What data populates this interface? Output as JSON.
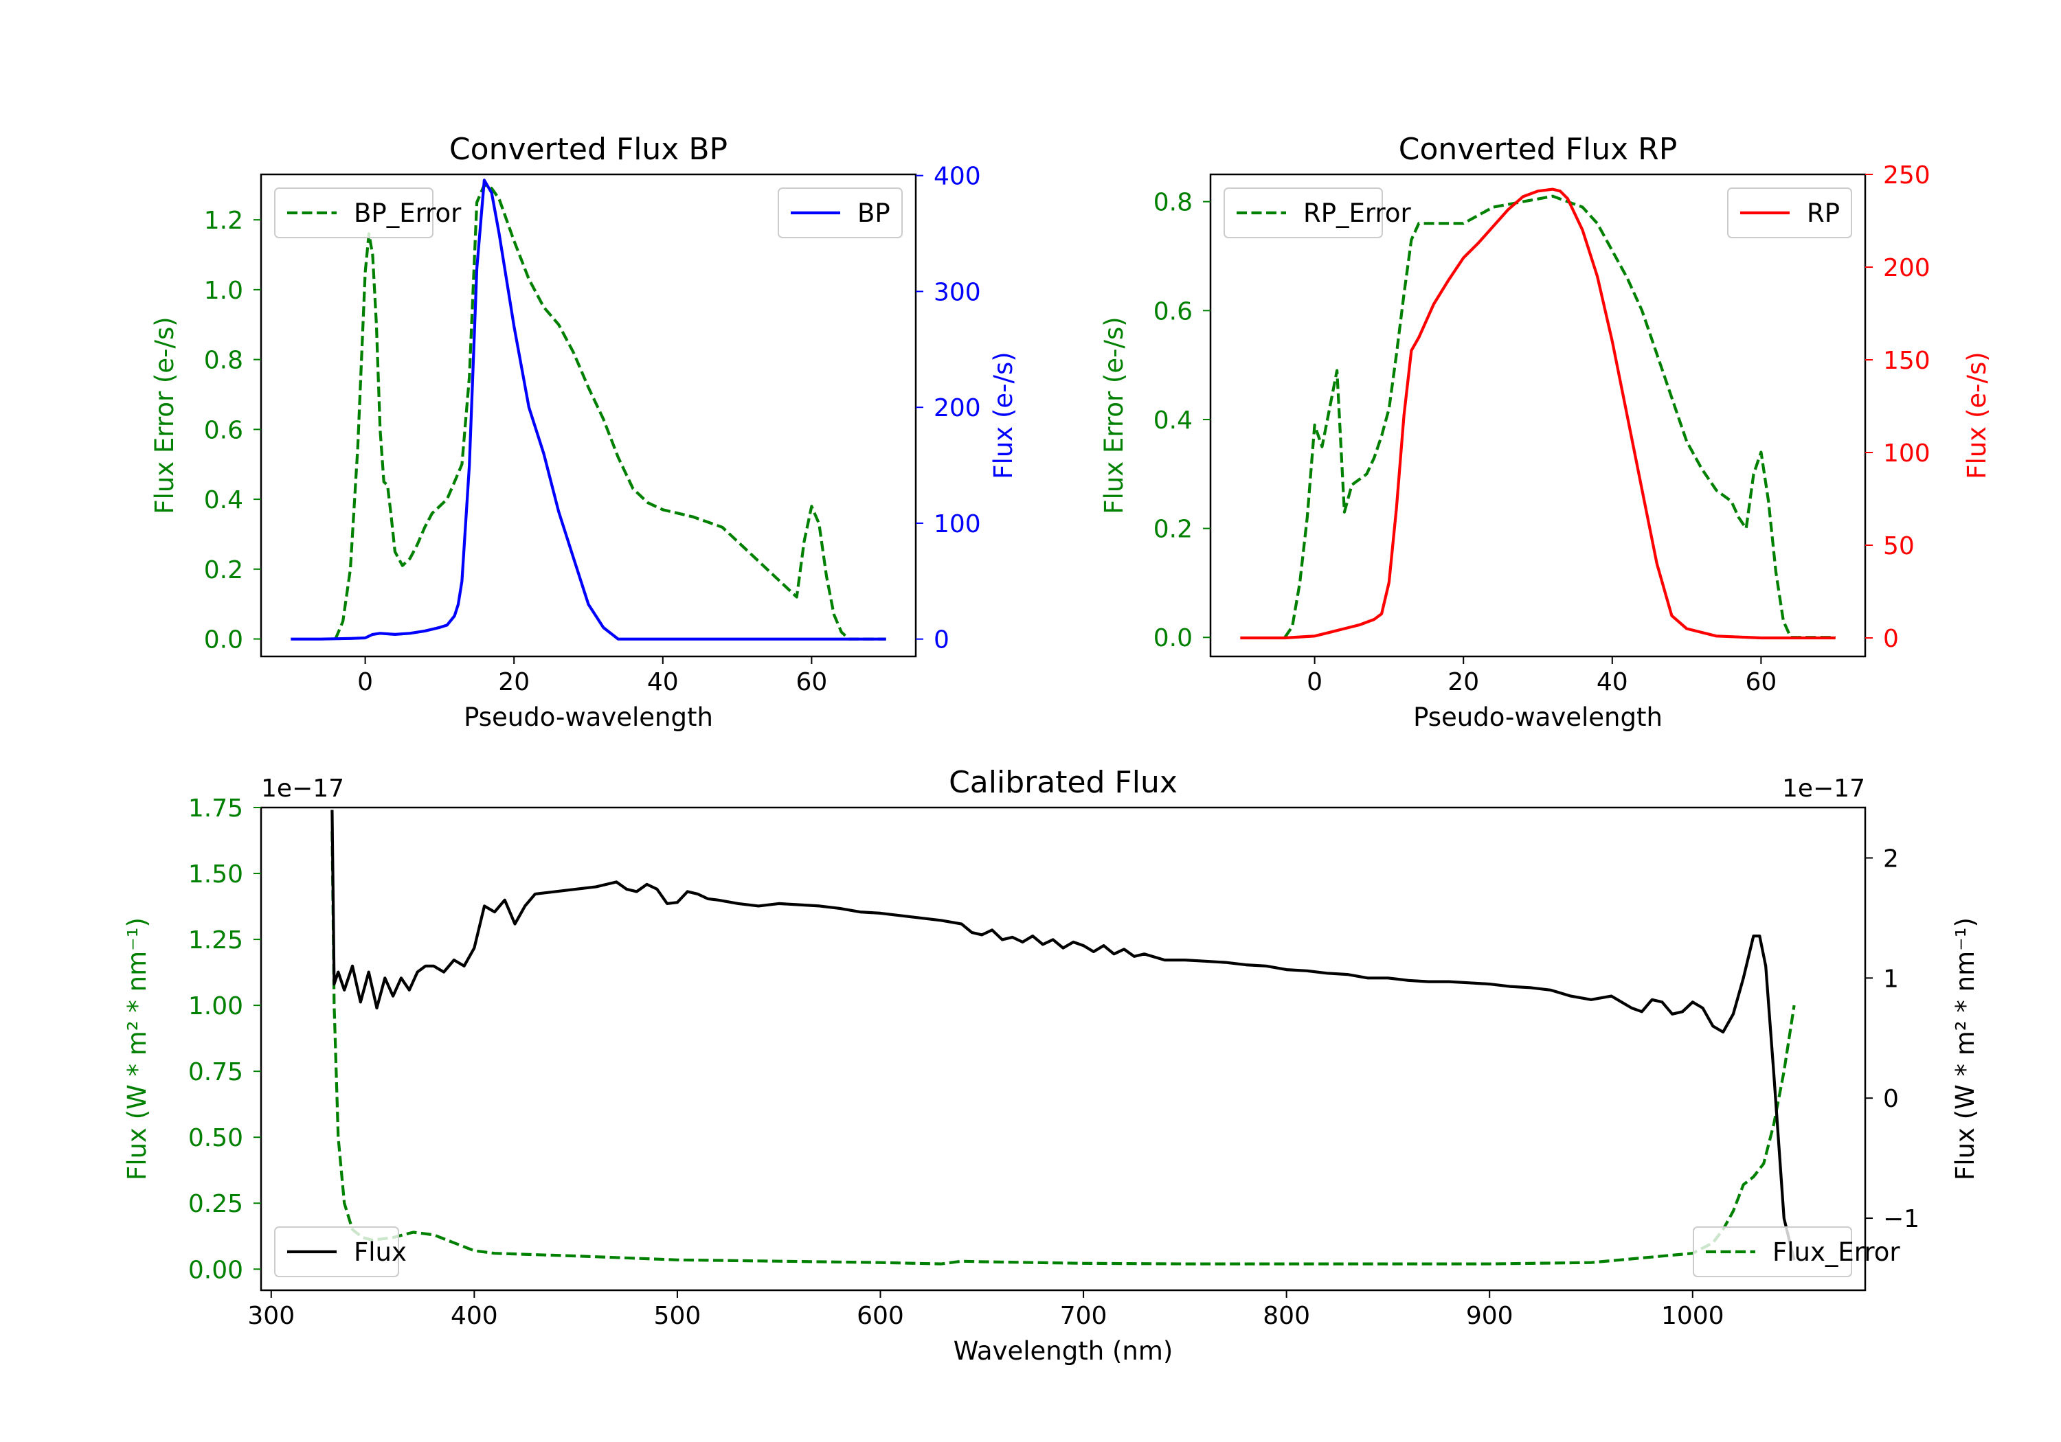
{
  "chart_data": [
    {
      "id": "bp",
      "type": "line",
      "title": "Converted Flux BP",
      "xlabel": "Pseudo-wavelength",
      "ylabel_left": "Flux Error (e-/s)",
      "ylabel_right": "Flux (e-/s)",
      "color_left": "#008000",
      "color_right": "#0000ff",
      "xlim": [
        -14,
        74
      ],
      "ylim_left": [
        -0.05,
        1.33
      ],
      "ylim_right": [
        -15.0,
        401.0
      ],
      "xticks": [
        0,
        20,
        40,
        60
      ],
      "yticks_left": [
        0.0,
        0.2,
        0.4,
        0.6,
        0.8,
        1.0,
        1.2
      ],
      "yticks_right": [
        0,
        100,
        200,
        300,
        400
      ],
      "legend_left": {
        "label": "BP_Error",
        "position": "upper left"
      },
      "legend_right": {
        "label": "BP",
        "position": "upper right"
      },
      "series": [
        {
          "name": "BP_Error",
          "axis": "left",
          "style": "dashed",
          "color": "#008000",
          "x": [
            -4,
            -3,
            -2,
            -1,
            0,
            0.5,
            1,
            1.5,
            2,
            2.5,
            3,
            3.5,
            4,
            5,
            6,
            7,
            8,
            9,
            10,
            11,
            12,
            13,
            14,
            15,
            16,
            17,
            18,
            20,
            22,
            24,
            26,
            28,
            30,
            32,
            34,
            36,
            38,
            40,
            44,
            48,
            50,
            54,
            57,
            58,
            59,
            60,
            61,
            62,
            63,
            64,
            65,
            66,
            70
          ],
          "values": [
            0,
            0.05,
            0.2,
            0.55,
            1.05,
            1.16,
            1.1,
            0.9,
            0.6,
            0.45,
            0.44,
            0.35,
            0.25,
            0.21,
            0.23,
            0.27,
            0.32,
            0.36,
            0.38,
            0.4,
            0.45,
            0.5,
            0.75,
            1.25,
            1.3,
            1.29,
            1.26,
            1.14,
            1.03,
            0.95,
            0.9,
            0.82,
            0.72,
            0.63,
            0.52,
            0.43,
            0.39,
            0.37,
            0.35,
            0.32,
            0.28,
            0.2,
            0.14,
            0.12,
            0.28,
            0.38,
            0.33,
            0.18,
            0.07,
            0.02,
            0.0,
            0.0,
            0.0
          ]
        },
        {
          "name": "BP",
          "axis": "right",
          "style": "solid",
          "color": "#0000ff",
          "x": [
            -10,
            -6,
            -2,
            0,
            1,
            2,
            4,
            6,
            8,
            10,
            11,
            12,
            12.5,
            13,
            14,
            15,
            16,
            17,
            18,
            20,
            22,
            24,
            26,
            28,
            30,
            32,
            34,
            36,
            37,
            38,
            40,
            44,
            48,
            52,
            56,
            60,
            64,
            70
          ],
          "values": [
            0,
            0,
            0.5,
            1,
            4,
            5,
            4,
            5,
            7,
            10,
            12,
            20,
            30,
            50,
            150,
            320,
            396,
            385,
            350,
            270,
            200,
            160,
            110,
            70,
            30,
            10,
            0,
            0,
            0,
            0,
            0,
            0,
            0,
            0,
            0,
            0,
            0,
            0
          ]
        }
      ]
    },
    {
      "id": "rp",
      "type": "line",
      "title": "Converted Flux RP",
      "xlabel": "Pseudo-wavelength",
      "ylabel_left": "Flux Error (e-/s)",
      "ylabel_right": "Flux (e-/s)",
      "color_left": "#008000",
      "color_right": "#ff0000",
      "xlim": [
        -14,
        74
      ],
      "ylim_left": [
        -0.035,
        0.85
      ],
      "ylim_right": [
        -10,
        250
      ],
      "xticks": [
        0,
        20,
        40,
        60
      ],
      "yticks_left": [
        0.0,
        0.2,
        0.4,
        0.6,
        0.8
      ],
      "yticks_right": [
        0,
        50,
        100,
        150,
        200,
        250
      ],
      "legend_left": {
        "label": "RP_Error",
        "position": "upper left"
      },
      "legend_right": {
        "label": "RP",
        "position": "upper right"
      },
      "series": [
        {
          "name": "RP_Error",
          "axis": "left",
          "style": "dashed",
          "color": "#008000",
          "x": [
            -4,
            -3,
            -2,
            -1,
            0,
            1,
            2,
            3,
            4,
            5,
            6,
            7,
            8,
            9,
            10,
            11,
            12,
            13,
            14,
            16,
            18,
            20,
            24,
            28,
            32,
            34,
            36,
            38,
            40,
            42,
            44,
            46,
            48,
            50,
            52,
            54,
            56,
            57,
            58,
            59,
            60,
            61,
            62,
            63,
            64,
            66,
            70
          ],
          "values": [
            0,
            0.02,
            0.1,
            0.22,
            0.39,
            0.35,
            0.42,
            0.49,
            0.23,
            0.28,
            0.29,
            0.3,
            0.33,
            0.37,
            0.42,
            0.52,
            0.63,
            0.73,
            0.76,
            0.76,
            0.76,
            0.76,
            0.79,
            0.8,
            0.81,
            0.8,
            0.79,
            0.76,
            0.71,
            0.66,
            0.6,
            0.52,
            0.44,
            0.36,
            0.31,
            0.27,
            0.25,
            0.22,
            0.2,
            0.3,
            0.34,
            0.25,
            0.12,
            0.03,
            0.0,
            0.0,
            0.0
          ]
        },
        {
          "name": "RP",
          "axis": "right",
          "style": "solid",
          "color": "#ff0000",
          "x": [
            -10,
            -4,
            0,
            2,
            4,
            6,
            8,
            9,
            10,
            11,
            12,
            13,
            14,
            16,
            18,
            20,
            22,
            24,
            26,
            28,
            30,
            32,
            33,
            34,
            36,
            38,
            40,
            42,
            44,
            46,
            48,
            50,
            54,
            60,
            70
          ],
          "values": [
            0,
            0,
            1,
            3,
            5,
            7,
            10,
            13,
            30,
            70,
            120,
            155,
            162,
            180,
            193,
            205,
            213,
            222,
            231,
            238,
            241,
            242,
            241,
            237,
            220,
            195,
            160,
            120,
            80,
            40,
            12,
            5,
            1,
            0,
            0
          ]
        }
      ]
    },
    {
      "id": "calibrated",
      "type": "line",
      "title": "Calibrated Flux",
      "xlabel": "Wavelength (nm)",
      "ylabel_left": "Flux (W * m² * nm⁻¹)",
      "ylabel_right": "Flux (W * m² * nm⁻¹)",
      "offset_left": "1e−17",
      "offset_right": "1e−17",
      "color_left": "#008000",
      "color_right": "#000000",
      "xlim": [
        295,
        1085
      ],
      "ylim_left": [
        -0.08,
        1.75
      ],
      "ylim_right": [
        -1.6,
        2.42
      ],
      "xticks": [
        300,
        400,
        500,
        600,
        700,
        800,
        900,
        1000
      ],
      "yticks_left": [
        0.0,
        0.25,
        0.5,
        0.75,
        1.0,
        1.25,
        1.5,
        1.75
      ],
      "yticks_right": [
        -1,
        0,
        1,
        2
      ],
      "legend_left": {
        "label": "Flux",
        "position": "lower left"
      },
      "legend_right": {
        "label": "Flux_Error",
        "position": "lower right"
      },
      "series": [
        {
          "name": "Flux_Error",
          "axis": "left",
          "style": "dashed",
          "color": "#008000",
          "x": [
            330,
            331,
            333,
            336,
            340,
            345,
            350,
            360,
            370,
            380,
            390,
            400,
            410,
            450,
            500,
            550,
            600,
            630,
            640,
            650,
            700,
            750,
            800,
            900,
            950,
            1000,
            1010,
            1015,
            1020,
            1025,
            1030,
            1035,
            1040,
            1045,
            1050
          ],
          "values": [
            1.66,
            1.0,
            0.5,
            0.25,
            0.15,
            0.12,
            0.11,
            0.12,
            0.14,
            0.13,
            0.1,
            0.07,
            0.06,
            0.05,
            0.035,
            0.03,
            0.025,
            0.02,
            0.03,
            0.028,
            0.022,
            0.02,
            0.02,
            0.02,
            0.025,
            0.06,
            0.1,
            0.15,
            0.22,
            0.32,
            0.35,
            0.4,
            0.55,
            0.75,
            1.0
          ]
        },
        {
          "name": "Flux",
          "axis": "right",
          "style": "solid",
          "color": "#000000",
          "x": [
            330,
            331,
            333,
            336,
            340,
            344,
            348,
            352,
            356,
            360,
            364,
            368,
            372,
            376,
            380,
            385,
            390,
            395,
            400,
            405,
            410,
            415,
            420,
            425,
            430,
            440,
            450,
            460,
            470,
            475,
            480,
            485,
            490,
            495,
            500,
            505,
            510,
            515,
            520,
            530,
            540,
            550,
            560,
            570,
            580,
            590,
            600,
            610,
            620,
            630,
            640,
            645,
            650,
            655,
            660,
            665,
            670,
            675,
            680,
            685,
            690,
            695,
            700,
            705,
            710,
            715,
            720,
            725,
            730,
            740,
            750,
            760,
            770,
            780,
            790,
            800,
            810,
            820,
            830,
            840,
            850,
            860,
            870,
            880,
            890,
            900,
            910,
            920,
            930,
            940,
            950,
            960,
            965,
            970,
            975,
            980,
            985,
            990,
            995,
            1000,
            1005,
            1010,
            1015,
            1020,
            1025,
            1030,
            1033,
            1036,
            1040,
            1045,
            1050
          ],
          "values": [
            2.4,
            0.95,
            1.05,
            0.9,
            1.1,
            0.8,
            1.05,
            0.75,
            1.0,
            0.85,
            1.0,
            0.9,
            1.05,
            1.1,
            1.1,
            1.05,
            1.15,
            1.1,
            1.25,
            1.6,
            1.55,
            1.65,
            1.45,
            1.6,
            1.7,
            1.72,
            1.74,
            1.76,
            1.8,
            1.74,
            1.72,
            1.78,
            1.74,
            1.62,
            1.63,
            1.72,
            1.7,
            1.66,
            1.65,
            1.62,
            1.6,
            1.62,
            1.61,
            1.6,
            1.58,
            1.55,
            1.54,
            1.52,
            1.5,
            1.48,
            1.45,
            1.38,
            1.36,
            1.4,
            1.32,
            1.34,
            1.3,
            1.35,
            1.28,
            1.32,
            1.25,
            1.3,
            1.27,
            1.22,
            1.27,
            1.2,
            1.24,
            1.18,
            1.2,
            1.15,
            1.15,
            1.14,
            1.13,
            1.11,
            1.1,
            1.07,
            1.06,
            1.04,
            1.03,
            1.0,
            1.0,
            0.98,
            0.97,
            0.97,
            0.96,
            0.95,
            0.93,
            0.92,
            0.9,
            0.85,
            0.82,
            0.85,
            0.8,
            0.75,
            0.72,
            0.82,
            0.8,
            0.7,
            0.72,
            0.8,
            0.75,
            0.6,
            0.55,
            0.7,
            1.0,
            1.35,
            1.35,
            1.1,
            0.2,
            -1.0,
            -1.35
          ]
        }
      ]
    }
  ]
}
